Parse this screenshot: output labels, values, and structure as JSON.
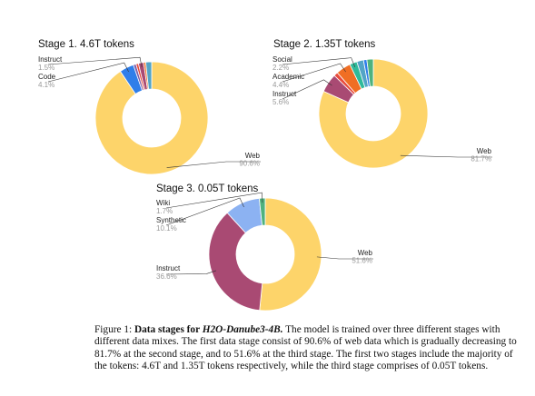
{
  "caption": {
    "label": "Figure 1:",
    "bold_prefix": "Data stages for ",
    "model_name": "H2O-Danube3-4B.",
    "text": " The model is trained over three different stages with different data mixes. The first data stage consist of 90.6% of web data which is gradually decreasing to 81.7% at the second stage, and to 51.6% at the third stage. The first two stages include the majority of the tokens: 4.6T and 1.35T tokens respectively, while the third stage comprises of 0.05T tokens."
  },
  "colors": {
    "web": "#fdd46a",
    "instruct": "#a94a73",
    "synthetic": "#8cb2f2",
    "wiki": "#4eb27e",
    "academic": "#f06e24",
    "social": "#2fba9a",
    "code": "#2f7ee9",
    "red": "#e84b3c",
    "purple": "#7b5ea9",
    "teal": "#53a4c6"
  },
  "chart_data": [
    {
      "type": "pie",
      "title": "Stage 1. 4.6T tokens",
      "slices": [
        {
          "name": "Web",
          "value": 90.6,
          "color": "web",
          "label": "Web",
          "value_label": "90.6%"
        },
        {
          "name": "Code",
          "value": 4.1,
          "color": "code",
          "label": "Code",
          "value_label": "4.1%"
        },
        {
          "name": "",
          "value": 0.8,
          "color": "purple"
        },
        {
          "name": "",
          "value": 0.7,
          "color": "red"
        },
        {
          "name": "Instruct",
          "value": 1.5,
          "color": "instruct",
          "label": "Instruct",
          "value_label": "1.5%"
        },
        {
          "name": "",
          "value": 0.6,
          "color": "academic"
        },
        {
          "name": "",
          "value": 1.7,
          "color": "teal"
        }
      ]
    },
    {
      "type": "pie",
      "title": "Stage 2. 1.35T tokens",
      "slices": [
        {
          "name": "Web",
          "value": 81.7,
          "color": "web",
          "label": "Web",
          "value_label": "81.7%"
        },
        {
          "name": "Instruct",
          "value": 5.6,
          "color": "instruct",
          "label": "Instruct",
          "value_label": "5.6%"
        },
        {
          "name": "",
          "value": 1.2,
          "color": "red"
        },
        {
          "name": "Academic",
          "value": 4.4,
          "color": "academic",
          "label": "Academic",
          "value_label": "4.4%"
        },
        {
          "name": "Social",
          "value": 2.2,
          "color": "social",
          "label": "Social",
          "value_label": "2.2%"
        },
        {
          "name": "",
          "value": 2.0,
          "color": "teal"
        },
        {
          "name": "",
          "value": 1.0,
          "color": "code"
        },
        {
          "name": "",
          "value": 1.9,
          "color": "wiki"
        }
      ]
    },
    {
      "type": "pie",
      "title": "Stage 3. 0.05T tokens",
      "slices": [
        {
          "name": "Web",
          "value": 51.6,
          "color": "web",
          "label": "Web",
          "value_label": "51.6%"
        },
        {
          "name": "Instruct",
          "value": 36.6,
          "color": "instruct",
          "label": "Instruct",
          "value_label": "36.6%"
        },
        {
          "name": "Synthetic",
          "value": 10.1,
          "color": "synthetic",
          "label": "Synthetic",
          "value_label": "10.1%"
        },
        {
          "name": "Wiki",
          "value": 1.7,
          "color": "wiki",
          "label": "Wiki",
          "value_label": "1.7%"
        }
      ]
    }
  ]
}
